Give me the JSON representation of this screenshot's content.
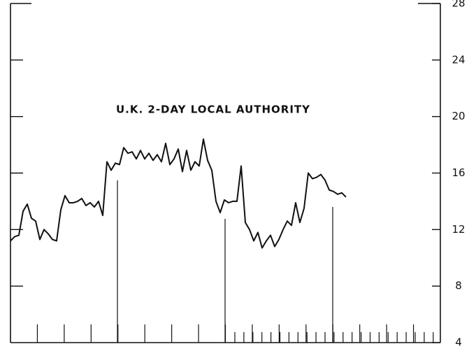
{
  "chart_data": {
    "type": "line",
    "title": "U.K. 2-DAY LOCAL AUTHORITY",
    "series": [
      {
        "color": "#111111",
        "values": [
          11.2,
          11.5,
          11.6,
          13.3,
          13.8,
          12.8,
          12.6,
          11.3,
          12.0,
          11.7,
          11.3,
          11.2,
          13.4,
          14.4,
          13.9,
          13.9,
          14.0,
          14.2,
          13.7,
          13.9,
          13.6,
          14.0,
          13.0,
          16.8,
          16.2,
          16.7,
          16.6,
          17.8,
          17.4,
          17.5,
          17.0,
          17.6,
          17.0,
          17.4,
          16.9,
          17.3,
          16.8,
          18.1,
          16.6,
          17.0,
          17.7,
          16.1,
          17.6,
          16.2,
          16.8,
          16.5,
          18.4,
          16.9,
          16.2,
          14.0,
          13.2,
          14.1,
          13.9,
          14.0,
          14.0,
          16.5,
          12.5,
          12.0,
          11.2,
          11.8,
          10.7,
          11.2,
          11.6,
          10.8,
          11.3,
          12.0,
          12.6,
          12.3,
          13.9,
          12.5,
          13.5,
          16.0,
          15.6,
          15.7,
          15.9,
          15.5,
          14.8,
          14.7,
          14.5,
          14.6,
          14.3
        ]
      }
    ],
    "ylim": [
      4,
      28
    ],
    "yticks": [
      4,
      8,
      12,
      16,
      20,
      24,
      28
    ],
    "xlim": [
      0,
      102.5
    ]
  }
}
